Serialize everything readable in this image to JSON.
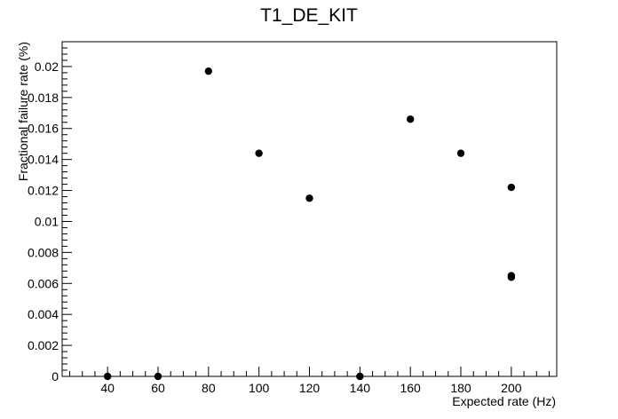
{
  "chart_data": {
    "type": "scatter",
    "title": "T1_DE_KIT",
    "xlabel": "Expected rate (Hz)",
    "ylabel": "Fractional failure rate (%)",
    "xlim": [
      22,
      218
    ],
    "ylim": [
      0,
      0.0216
    ],
    "grid": false,
    "xticks": [
      40,
      60,
      80,
      100,
      120,
      140,
      160,
      180,
      200
    ],
    "yticks": [
      0,
      0.002,
      0.004,
      0.006,
      0.008,
      0.01,
      0.012,
      0.014,
      0.016,
      0.018,
      0.02
    ],
    "ytick_labels": [
      "0",
      "0.002",
      "0.004",
      "0.006",
      "0.008",
      "0.01",
      "0.012",
      "0.014",
      "0.016",
      "0.018",
      "0.02"
    ],
    "marker_color": "#000000",
    "points": [
      {
        "x": 40,
        "y": 0
      },
      {
        "x": 60,
        "y": 0
      },
      {
        "x": 80,
        "y": 0.0197
      },
      {
        "x": 100,
        "y": 0.0144
      },
      {
        "x": 120,
        "y": 0.0115
      },
      {
        "x": 140,
        "y": 0
      },
      {
        "x": 160,
        "y": 0.0166
      },
      {
        "x": 180,
        "y": 0.0144
      },
      {
        "x": 200,
        "y": 0.0122
      },
      {
        "x": 200,
        "y": 0.0065
      },
      {
        "x": 200,
        "y": 0.0064
      }
    ]
  }
}
